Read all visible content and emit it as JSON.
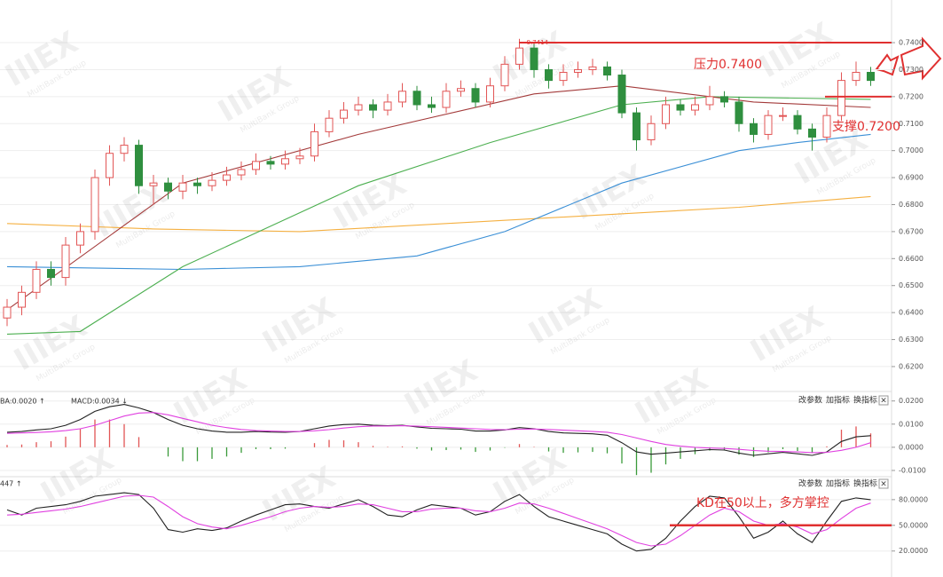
{
  "chart_data": [
    {
      "type": "candlestick",
      "open": [
        0.638,
        0.642,
        0.6475,
        0.656,
        0.653,
        0.665,
        0.67,
        0.69,
        0.699,
        0.702,
        0.687,
        0.688,
        0.685,
        0.688,
        0.687,
        0.689,
        0.691,
        0.693,
        0.696,
        0.695,
        0.697,
        0.698,
        0.707,
        0.712,
        0.715,
        0.717,
        0.715,
        0.718,
        0.722,
        0.717,
        0.716,
        0.722,
        0.723,
        0.718,
        0.724,
        0.732,
        0.738,
        0.73,
        0.726,
        0.729,
        0.73,
        0.731,
        0.728,
        0.714,
        0.704,
        0.71,
        0.717,
        0.715,
        0.717,
        0.72,
        0.718,
        0.71,
        0.706,
        0.713,
        0.713,
        0.708,
        0.705,
        0.713,
        0.726,
        0.729
      ],
      "high": [
        0.645,
        0.65,
        0.659,
        0.659,
        0.668,
        0.673,
        0.693,
        0.702,
        0.705,
        0.704,
        0.691,
        0.69,
        0.691,
        0.69,
        0.692,
        0.694,
        0.696,
        0.699,
        0.698,
        0.7,
        0.701,
        0.71,
        0.715,
        0.718,
        0.72,
        0.719,
        0.721,
        0.725,
        0.724,
        0.72,
        0.725,
        0.726,
        0.725,
        0.727,
        0.735,
        0.7414,
        0.74,
        0.732,
        0.732,
        0.733,
        0.734,
        0.733,
        0.73,
        0.716,
        0.713,
        0.72,
        0.719,
        0.72,
        0.724,
        0.722,
        0.72,
        0.712,
        0.715,
        0.716,
        0.715,
        0.71,
        0.716,
        0.729,
        0.733,
        0.731
      ],
      "low": [
        0.635,
        0.639,
        0.645,
        0.65,
        0.65,
        0.662,
        0.667,
        0.687,
        0.696,
        0.684,
        0.68,
        0.682,
        0.682,
        0.684,
        0.685,
        0.687,
        0.689,
        0.691,
        0.693,
        0.693,
        0.695,
        0.696,
        0.705,
        0.71,
        0.713,
        0.712,
        0.713,
        0.716,
        0.715,
        0.714,
        0.714,
        0.72,
        0.716,
        0.716,
        0.722,
        0.73,
        0.727,
        0.723,
        0.724,
        0.727,
        0.728,
        0.726,
        0.712,
        0.7,
        0.702,
        0.708,
        0.713,
        0.713,
        0.715,
        0.716,
        0.707,
        0.703,
        0.704,
        0.711,
        0.706,
        0.7,
        0.703,
        0.711,
        0.724,
        0.724
      ],
      "close": [
        0.642,
        0.6475,
        0.656,
        0.653,
        0.665,
        0.67,
        0.69,
        0.699,
        0.702,
        0.687,
        0.688,
        0.685,
        0.688,
        0.687,
        0.689,
        0.691,
        0.693,
        0.696,
        0.695,
        0.697,
        0.698,
        0.707,
        0.712,
        0.715,
        0.717,
        0.715,
        0.718,
        0.722,
        0.717,
        0.716,
        0.722,
        0.723,
        0.718,
        0.724,
        0.732,
        0.738,
        0.73,
        0.726,
        0.729,
        0.73,
        0.731,
        0.728,
        0.714,
        0.704,
        0.71,
        0.717,
        0.715,
        0.717,
        0.72,
        0.718,
        0.71,
        0.706,
        0.713,
        0.713,
        0.708,
        0.705,
        0.713,
        0.726,
        0.729,
        0.726
      ],
      "colors": {
        "up": "#e25555",
        "down": "#2f8f3f"
      },
      "ylim": [
        0.6111,
        0.7558
      ],
      "yticks": [
        {
          "value": 0.62,
          "label": "0.6200"
        },
        {
          "value": 0.63,
          "label": "0.6300"
        },
        {
          "value": 0.64,
          "label": "0.6400"
        },
        {
          "value": 0.65,
          "label": "0.6500"
        },
        {
          "value": 0.66,
          "label": "0.6600"
        },
        {
          "value": 0.67,
          "label": "0.6700"
        },
        {
          "value": 0.68,
          "label": "0.6800"
        },
        {
          "value": 0.69,
          "label": "0.6900"
        },
        {
          "value": 0.7,
          "label": "0.7000"
        },
        {
          "value": 0.71,
          "label": "0.7100"
        },
        {
          "value": 0.72,
          "label": "0.7200"
        },
        {
          "value": 0.73,
          "label": "0.7300"
        },
        {
          "value": 0.74,
          "label": "0.7400"
        }
      ],
      "grid": true,
      "lines": [
        {
          "color": "#f5b041",
          "x": [
            0,
            10,
            20,
            30,
            40,
            50,
            59
          ],
          "values": [
            0.673,
            0.671,
            0.67,
            0.673,
            0.676,
            0.679,
            0.683
          ]
        },
        {
          "color": "#3a8fd6",
          "x": [
            0,
            12,
            20,
            28,
            34,
            42,
            50,
            54,
            59
          ],
          "values": [
            0.657,
            0.656,
            0.657,
            0.661,
            0.67,
            0.688,
            0.7,
            0.703,
            0.706
          ]
        },
        {
          "color": "#4caf50",
          "x": [
            0,
            5,
            12,
            24,
            33,
            42,
            48,
            59
          ],
          "values": [
            0.632,
            0.633,
            0.657,
            0.687,
            0.703,
            0.717,
            0.72,
            0.719
          ]
        },
        {
          "color": "#a33a3a",
          "x": [
            0,
            12,
            24,
            36,
            42,
            51,
            59
          ],
          "values": [
            0.641,
            0.688,
            0.706,
            0.721,
            0.724,
            0.718,
            0.716
          ]
        }
      ],
      "levels": [
        {
          "value": 0.74,
          "color": "#e03030"
        },
        {
          "value": 0.72,
          "color": "#e03030"
        }
      ],
      "annotations": [
        "压力0.7400",
        "支撑0.7200"
      ],
      "high_label": "0.7414",
      "watermark": [
        "IIIEX",
        "MultiBank Group"
      ]
    },
    {
      "type": "macd",
      "header": [
        "BA:0.0020 ↑",
        "MACD:0.0034 ↓"
      ],
      "toolbar": [
        "改参数",
        "加指标",
        "换指标",
        "×"
      ],
      "series": [
        {
          "color": "#222222",
          "values": [
            0.0065,
            0.0068,
            0.0075,
            0.008,
            0.0095,
            0.012,
            0.0155,
            0.0175,
            0.0185,
            0.017,
            0.015,
            0.012,
            0.0095,
            0.008,
            0.007,
            0.0065,
            0.0065,
            0.0068,
            0.0066,
            0.0065,
            0.0068,
            0.008,
            0.0092,
            0.0098,
            0.01,
            0.0095,
            0.0093,
            0.0095,
            0.0088,
            0.0082,
            0.008,
            0.0078,
            0.007,
            0.007,
            0.0075,
            0.0085,
            0.008,
            0.0068,
            0.0062,
            0.006,
            0.0058,
            0.0052,
            0.002,
            -0.002,
            -0.003,
            -0.0025,
            -0.002,
            -0.0015,
            -0.001,
            -0.0012,
            -0.0025,
            -0.0035,
            -0.0028,
            -0.0022,
            -0.0028,
            -0.0035,
            -0.002,
            0.0025,
            0.0045,
            0.005
          ]
        },
        {
          "color": "#e040e0",
          "values": [
            0.006,
            0.0062,
            0.0064,
            0.0067,
            0.0072,
            0.008,
            0.0095,
            0.0115,
            0.0135,
            0.0148,
            0.015,
            0.014,
            0.0125,
            0.011,
            0.0095,
            0.0085,
            0.0077,
            0.0072,
            0.007,
            0.0068,
            0.0068,
            0.0071,
            0.0076,
            0.0083,
            0.0089,
            0.0092,
            0.0092,
            0.0093,
            0.0091,
            0.0089,
            0.0086,
            0.0083,
            0.008,
            0.0077,
            0.0076,
            0.0078,
            0.0079,
            0.0077,
            0.0074,
            0.0071,
            0.0068,
            0.0065,
            0.0055,
            0.004,
            0.0025,
            0.0012,
            0.0005,
            0.0,
            -0.0003,
            -0.0005,
            -0.0009,
            -0.0014,
            -0.0017,
            -0.0018,
            -0.002,
            -0.0023,
            -0.0022,
            -0.0013,
            0.0,
            0.002
          ]
        }
      ],
      "bars": {
        "up": "#e25555",
        "down": "#3a9a3a",
        "values": [
          0.001,
          0.0012,
          0.0022,
          0.0026,
          0.0046,
          0.008,
          0.012,
          0.012,
          0.01,
          0.0044,
          0,
          -0.004,
          -0.006,
          -0.006,
          -0.005,
          -0.004,
          -0.0024,
          -0.0008,
          -0.0008,
          -0.0006,
          0,
          0.0018,
          0.0032,
          0.003,
          0.0022,
          0.0006,
          0.0002,
          0.0004,
          -0.0006,
          -0.0014,
          -0.0012,
          -0.001,
          -0.002,
          -0.0014,
          -0.0002,
          0.0014,
          0.0002,
          -0.0018,
          -0.0024,
          -0.0022,
          -0.002,
          -0.0026,
          -0.007,
          -0.012,
          -0.011,
          -0.0074,
          -0.005,
          -0.003,
          -0.0014,
          -0.0014,
          -0.0032,
          -0.0042,
          -0.0022,
          -0.0008,
          -0.0016,
          -0.0024,
          0.0004,
          0.0076,
          0.009,
          0.006
        ]
      },
      "ylim": [
        -0.0127,
        0.0241
      ],
      "yticks": [
        {
          "value": 0.02,
          "label": "0.0200"
        },
        {
          "value": 0.01,
          "label": "0.0100"
        },
        {
          "value": 0,
          "label": "0.0000"
        },
        {
          "value": -0.01,
          "label": "-0.0100"
        }
      ]
    },
    {
      "type": "kd",
      "header": [
        "447 ↑"
      ],
      "toolbar": [
        "改参数",
        "加指标",
        "换指标",
        "×"
      ],
      "series": [
        {
          "color": "#222222",
          "values": [
            68,
            62,
            70,
            72,
            74,
            78,
            84,
            86,
            88,
            86,
            70,
            45,
            42,
            46,
            44,
            47,
            55,
            62,
            68,
            74,
            75,
            72,
            70,
            75,
            80,
            72,
            62,
            60,
            68,
            74,
            72,
            70,
            62,
            66,
            78,
            86,
            72,
            60,
            55,
            50,
            45,
            40,
            28,
            20,
            22,
            35,
            55,
            72,
            84,
            82,
            60,
            35,
            42,
            55,
            40,
            30,
            55,
            78,
            82,
            80
          ]
        },
        {
          "color": "#e040e0",
          "values": [
            62,
            63,
            65,
            67,
            69,
            72,
            76,
            80,
            84,
            85,
            83,
            72,
            60,
            52,
            48,
            46,
            50,
            55,
            60,
            66,
            70,
            72,
            71,
            72,
            75,
            74,
            70,
            66,
            66,
            69,
            70,
            70,
            67,
            66,
            70,
            76,
            75,
            70,
            64,
            58,
            52,
            46,
            38,
            30,
            26,
            28,
            38,
            50,
            62,
            70,
            66,
            55,
            50,
            52,
            48,
            40,
            45,
            58,
            70,
            76
          ]
        }
      ],
      "levels": [
        {
          "value": 50,
          "color": "#e03030"
        }
      ],
      "annotation": "KD在50以上，多方掌控",
      "ylim": [
        10.4,
        106.8
      ],
      "yticks": [
        {
          "value": 80,
          "label": "80.0000"
        },
        {
          "value": 50,
          "label": "50.0000"
        },
        {
          "value": 20,
          "label": "20.0000"
        }
      ]
    }
  ]
}
